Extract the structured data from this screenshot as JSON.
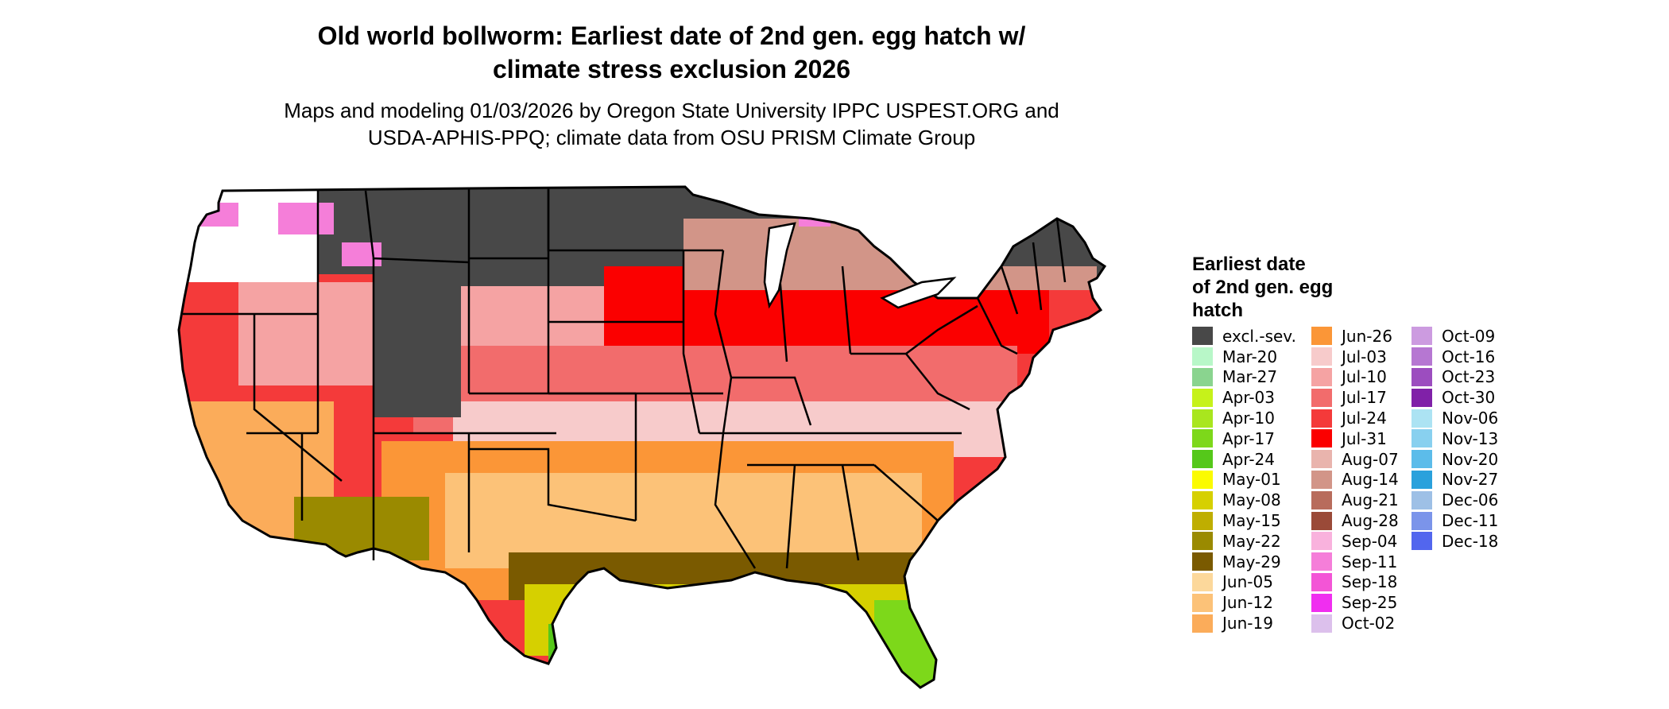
{
  "header": {
    "title_line1": "Old world bollworm: Earliest date of 2nd gen. egg hatch w/",
    "title_line2": "climate stress exclusion 2026",
    "subtitle_line1": "Maps and modeling 01/03/2026 by Oregon State University IPPC USPEST.ORG and",
    "subtitle_line2": "USDA-APHIS-PPQ; climate data from OSU PRISM Climate Group"
  },
  "legend": {
    "title_line1": "Earliest date",
    "title_line2": "of 2nd gen. egg",
    "title_line3": "hatch",
    "columns": [
      [
        {
          "label": "excl.-sev.",
          "color": "#484848"
        },
        {
          "label": "Mar-20",
          "color": "#b8f7c8"
        },
        {
          "label": "Mar-27",
          "color": "#8ad48f"
        },
        {
          "label": "Apr-03",
          "color": "#c6f21a"
        },
        {
          "label": "Apr-10",
          "color": "#a9e61e"
        },
        {
          "label": "Apr-17",
          "color": "#7dd81a"
        },
        {
          "label": "Apr-24",
          "color": "#55c81a"
        },
        {
          "label": "May-01",
          "color": "#fbfb00"
        },
        {
          "label": "May-08",
          "color": "#d6d000"
        },
        {
          "label": "May-15",
          "color": "#bfae00"
        },
        {
          "label": "May-22",
          "color": "#9a8a00"
        },
        {
          "label": "May-29",
          "color": "#7a5a00"
        },
        {
          "label": "Jun-05",
          "color": "#fcd89b"
        },
        {
          "label": "Jun-12",
          "color": "#fcc278"
        },
        {
          "label": "Jun-19",
          "color": "#fbac5a"
        }
      ],
      [
        {
          "label": "Jun-26",
          "color": "#fb9637"
        },
        {
          "label": "Jul-03",
          "color": "#f7cbcb"
        },
        {
          "label": "Jul-10",
          "color": "#f5a3a3"
        },
        {
          "label": "Jul-17",
          "color": "#f26c6c"
        },
        {
          "label": "Jul-24",
          "color": "#f43a3a"
        },
        {
          "label": "Jul-31",
          "color": "#fb0000"
        },
        {
          "label": "Aug-07",
          "color": "#e9b4ad"
        },
        {
          "label": "Aug-14",
          "color": "#d29588"
        },
        {
          "label": "Aug-21",
          "color": "#b86c5c"
        },
        {
          "label": "Aug-28",
          "color": "#9a4a38"
        },
        {
          "label": "Sep-04",
          "color": "#f9b2dd"
        },
        {
          "label": "Sep-11",
          "color": "#f57ed9"
        },
        {
          "label": "Sep-18",
          "color": "#f355d6"
        },
        {
          "label": "Sep-25",
          "color": "#f02ef0"
        },
        {
          "label": "Oct-02",
          "color": "#dcc0ec"
        }
      ],
      [
        {
          "label": "Oct-09",
          "color": "#cc9be0"
        },
        {
          "label": "Oct-16",
          "color": "#b677d2"
        },
        {
          "label": "Oct-23",
          "color": "#9c4dbf"
        },
        {
          "label": "Oct-30",
          "color": "#8021a8"
        },
        {
          "label": "Nov-06",
          "color": "#ace3f3"
        },
        {
          "label": "Nov-13",
          "color": "#88d0ef"
        },
        {
          "label": "Nov-20",
          "color": "#5cbcea"
        },
        {
          "label": "Nov-27",
          "color": "#2aa1dc"
        },
        {
          "label": "Dec-06",
          "color": "#9ec0e6"
        },
        {
          "label": "Dec-11",
          "color": "#7b94ea"
        },
        {
          "label": "Dec-18",
          "color": "#5266ee"
        }
      ]
    ]
  },
  "map": {
    "land_colors": {
      "excluded": "#484848",
      "northeast_fringe": "#d29588",
      "midwest_red": "#fb0000",
      "plains_pink": "#f5a3a3",
      "south_orange": "#fb9637",
      "gulf_olive": "#7a5a00",
      "west_red": "#f43a3a",
      "florida_green": "#7dd81a",
      "mountain_white": "#ffffff",
      "mountain_magenta": "#f57ed9",
      "state_border": "#000000"
    }
  }
}
